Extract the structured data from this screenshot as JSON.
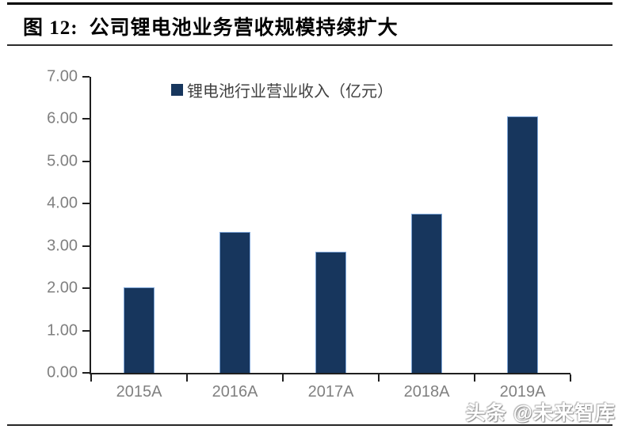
{
  "figure": {
    "label": "图 12:",
    "title": "公司锂电池业务营收规模持续扩大"
  },
  "chart_data": {
    "type": "bar",
    "legend": [
      "锂电池行业营业收入（亿元）"
    ],
    "legend_position": "top-center",
    "categories": [
      "2015A",
      "2016A",
      "2017A",
      "2018A",
      "2019A"
    ],
    "values": [
      2.02,
      3.34,
      2.86,
      3.77,
      6.07
    ],
    "ylim": [
      0,
      7
    ],
    "ytick_interval": 1,
    "ytick_labels": [
      "0.00",
      "1.00",
      "2.00",
      "3.00",
      "4.00",
      "5.00",
      "6.00",
      "7.00"
    ],
    "grid": false,
    "bar_color": "#17365D",
    "bar_border_color": "#7EA6D8",
    "axis_color": "#1f1f1f",
    "tick_label_color": "#808080",
    "legend_text_color": "#404040"
  },
  "watermark": {
    "text": "头条 @未来智库"
  }
}
